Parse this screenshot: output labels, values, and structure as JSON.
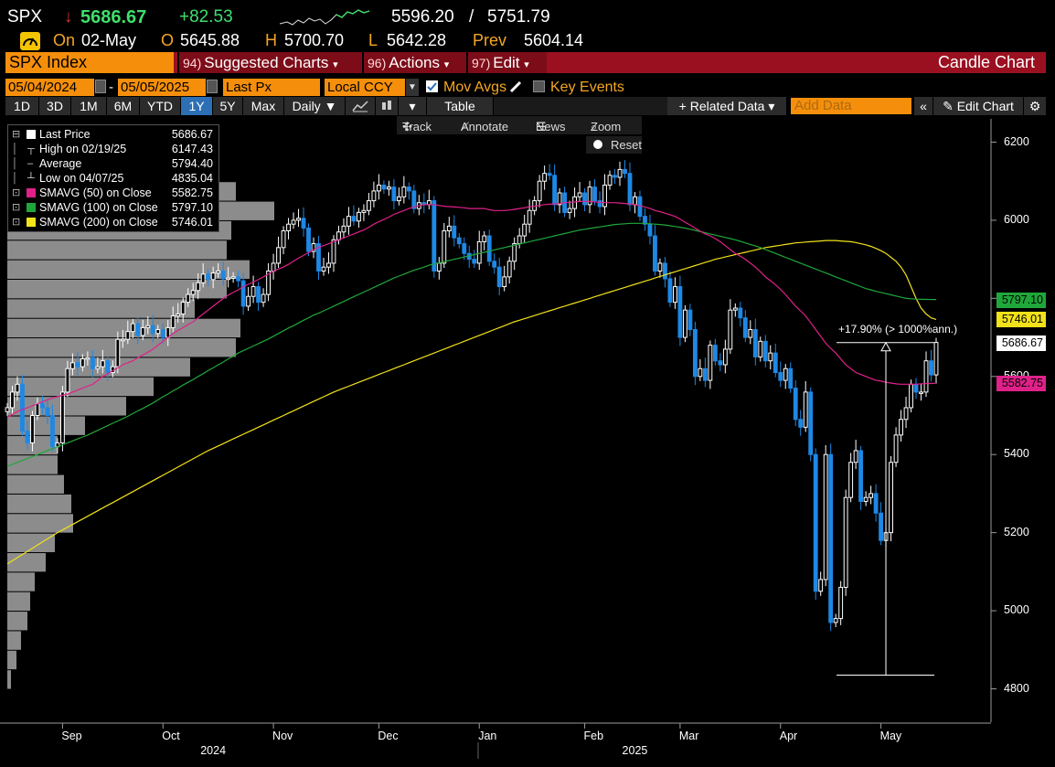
{
  "header": {
    "ticker": "SPX",
    "arrow": "↓",
    "last": "5686.67",
    "change": "+82.53",
    "range_low": "5596.20",
    "range_sep": "/",
    "range_high": "5751.79",
    "on_label": "On",
    "date": "02-May",
    "open_label": "O",
    "open": "5645.88",
    "high_label": "H",
    "high": "5700.70",
    "low_label": "L",
    "low": "5642.28",
    "prev_label": "Prev",
    "prev": "5604.14"
  },
  "menu": {
    "security": "SPX Index",
    "items": [
      {
        "num": "94)",
        "label": "Suggested Charts"
      },
      {
        "num": "96)",
        "label": "Actions"
      },
      {
        "num": "97)",
        "label": "Edit"
      }
    ],
    "title": "Candle Chart"
  },
  "controls": {
    "start_date": "05/04/2024",
    "end_date": "05/05/2025",
    "field": "Last Px",
    "currency": "Local CCY",
    "mov_avgs": "Mov Avgs",
    "key_events": "Key Events"
  },
  "toolbar": {
    "periods": [
      "1D",
      "3D",
      "1M",
      "6M",
      "YTD",
      "1Y",
      "5Y",
      "Max"
    ],
    "selected_period": "1Y",
    "frequency": "Daily",
    "table": "Table",
    "related_data": "Related Data",
    "add_data_placeholder": "Add Data",
    "edit_chart": "Edit Chart"
  },
  "float_tools": {
    "track": "Track",
    "annotate": "Annotate",
    "news": "News",
    "zoom": "Zoom",
    "reset": "Reset"
  },
  "legend": [
    {
      "label": "Last Price",
      "value": "5686.67",
      "color": "#ffffff",
      "marker": "square"
    },
    {
      "label": "High on 02/19/25",
      "value": "6147.43",
      "marker": "up"
    },
    {
      "label": "Average",
      "value": "5794.40",
      "marker": "dash"
    },
    {
      "label": "Low on 04/07/25",
      "value": "4835.04",
      "marker": "down"
    },
    {
      "label": "SMAVG (50)  on Close",
      "value": "5582.75",
      "color": "#e0218a",
      "marker": "square"
    },
    {
      "label": "SMAVG (100)  on Close",
      "value": "5797.10",
      "color": "#1fa83a",
      "marker": "square"
    },
    {
      "label": "SMAVG (200)  on Close",
      "value": "5746.01",
      "color": "#f2e21a",
      "marker": "square"
    }
  ],
  "annotation": "+17.90% (> 1000%ann.)",
  "chart_data": {
    "type": "candlestick",
    "ylim": [
      4750,
      6250
    ],
    "y_ticks": [
      4800,
      5000,
      5200,
      5400,
      5600,
      5800,
      6000,
      6200
    ],
    "x_month_labels": [
      "Sep",
      "Oct",
      "Nov",
      "Dec",
      "Jan",
      "Feb",
      "Mar",
      "Apr",
      "May"
    ],
    "x_year_labels": [
      "2024",
      "2025"
    ],
    "right_labels": [
      {
        "value": 5797.1,
        "text": "5797.10",
        "color": "#1fa83a"
      },
      {
        "value": 5746.01,
        "text": "5746.01",
        "color": "#f2e21a"
      },
      {
        "value": 5686.67,
        "text": "5686.67",
        "color": "#ffffff"
      },
      {
        "value": 5582.75,
        "text": "5582.75",
        "color": "#e0218a"
      }
    ],
    "close": [
      5520,
      5560,
      5580,
      5460,
      5430,
      5500,
      5530,
      5520,
      5500,
      5420,
      5430,
      5560,
      5620,
      5635,
      5625,
      5645,
      5648,
      5620,
      5625,
      5640,
      5610,
      5625,
      5695,
      5695,
      5715,
      5735,
      5705,
      5725,
      5730,
      5710,
      5720,
      5700,
      5725,
      5755,
      5760,
      5790,
      5810,
      5820,
      5840,
      5862,
      5848,
      5865,
      5870,
      5850,
      5852,
      5855,
      5845,
      5780,
      5805,
      5830,
      5790,
      5810,
      5870,
      5890,
      5930,
      5973,
      5990,
      6000,
      6005,
      5980,
      5920,
      5940,
      5870,
      5880,
      5890,
      5950,
      5970,
      5985,
      6010,
      5998,
      6020,
      6025,
      6050,
      6075,
      6090,
      6080,
      6085,
      6050,
      6060,
      6085,
      6075,
      6030,
      6045,
      6040,
      6050,
      5870,
      5890,
      5973,
      5985,
      5955,
      5940,
      5915,
      5900,
      5890,
      5945,
      5960,
      5895,
      5880,
      5830,
      5855,
      5895,
      5940,
      5960,
      5990,
      6025,
      6050,
      6100,
      6120,
      6115,
      6040,
      6070,
      6020,
      6030,
      6060,
      6070,
      6040,
      6085,
      6050,
      6035,
      6090,
      6115,
      6110,
      6130,
      6120,
      6040,
      6060,
      6010,
      5990,
      5960,
      5870,
      5890,
      5850,
      5790,
      5830,
      5700,
      5770,
      5720,
      5600,
      5620,
      5590,
      5680,
      5640,
      5630,
      5670,
      5770,
      5775,
      5750,
      5700,
      5720,
      5650,
      5690,
      5640,
      5660,
      5610,
      5590,
      5620,
      5570,
      5490,
      5470,
      5560,
      5400,
      5050,
      5080,
      5400,
      4970,
      4980,
      5060,
      5290,
      5380,
      5410,
      5280,
      5290,
      5300,
      5250,
      5180,
      5200,
      5380,
      5450,
      5490,
      5520,
      5580,
      5560,
      5560,
      5640,
      5604,
      5687
    ],
    "sma50": [
      5495,
      5503,
      5510,
      5515,
      5520,
      5525,
      5530,
      5535,
      5540,
      5545,
      5548,
      5552,
      5555,
      5560,
      5565,
      5570,
      5575,
      5580,
      5590,
      5600,
      5607,
      5615,
      5622,
      5630,
      5635,
      5640,
      5648,
      5655,
      5662,
      5670,
      5680,
      5690,
      5700,
      5710,
      5718,
      5725,
      5733,
      5740,
      5750,
      5760,
      5770,
      5780,
      5790,
      5800,
      5808,
      5815,
      5822,
      5830,
      5836,
      5842,
      5848,
      5855,
      5862,
      5870,
      5875,
      5880,
      5887,
      5895,
      5903,
      5910,
      5917,
      5925,
      5930,
      5935,
      5940,
      5945,
      5950,
      5955,
      5960,
      5965,
      5970,
      5975,
      5982,
      5990,
      5996,
      6002,
      6008,
      6015,
      6020,
      6025,
      6030,
      6034,
      6037,
      6040,
      6040,
      6040,
      6038,
      6036,
      6035,
      6034,
      6033,
      6032,
      6030,
      6030,
      6030,
      6030,
      6027,
      6025,
      6025,
      6025,
      6026,
      6028,
      6030,
      6032,
      6035,
      6036,
      6038,
      6040,
      6041,
      6042,
      6043,
      6045,
      6046,
      6047,
      6048,
      6048,
      6048,
      6047,
      6046,
      6045,
      6045,
      6045,
      6044,
      6043,
      6042,
      6040,
      6037,
      6034,
      6030,
      6025,
      6022,
      6018,
      6014,
      6010,
      6003,
      5995,
      5988,
      5980,
      5972,
      5965,
      5960,
      5953,
      5945,
      5935,
      5925,
      5915,
      5908,
      5900,
      5890,
      5880,
      5868,
      5855,
      5845,
      5835,
      5823,
      5810,
      5795,
      5780,
      5768,
      5755,
      5738,
      5720,
      5703,
      5685,
      5672,
      5660,
      5645,
      5630,
      5620,
      5610,
      5605,
      5600,
      5595,
      5590,
      5588,
      5585,
      5583,
      5581,
      5580,
      5580,
      5580,
      5580,
      5581,
      5582,
      5582,
      5582.75
    ],
    "sma100": [
      5370,
      5375,
      5380,
      5385,
      5390,
      5395,
      5400,
      5405,
      5410,
      5415,
      5420,
      5425,
      5430,
      5435,
      5440,
      5445,
      5450,
      5456,
      5462,
      5468,
      5474,
      5480,
      5486,
      5492,
      5498,
      5505,
      5512,
      5518,
      5525,
      5532,
      5540,
      5548,
      5555,
      5563,
      5570,
      5578,
      5585,
      5592,
      5600,
      5607,
      5615,
      5622,
      5630,
      5637,
      5645,
      5652,
      5660,
      5666,
      5672,
      5678,
      5684,
      5690,
      5696,
      5703,
      5710,
      5717,
      5724,
      5730,
      5737,
      5744,
      5750,
      5757,
      5762,
      5768,
      5774,
      5780,
      5786,
      5792,
      5798,
      5804,
      5810,
      5816,
      5822,
      5828,
      5834,
      5840,
      5846,
      5852,
      5857,
      5862,
      5867,
      5872,
      5876,
      5880,
      5885,
      5888,
      5891,
      5894,
      5897,
      5900,
      5903,
      5906,
      5909,
      5912,
      5915,
      5918,
      5921,
      5924,
      5927,
      5930,
      5933,
      5936,
      5939,
      5942,
      5945,
      5948,
      5951,
      5954,
      5957,
      5960,
      5963,
      5966,
      5969,
      5972,
      5975,
      5977,
      5979,
      5981,
      5983,
      5985,
      5987,
      5989,
      5990,
      5991,
      5992,
      5992,
      5992,
      5992,
      5991,
      5990,
      5989,
      5988,
      5986,
      5984,
      5982,
      5980,
      5977,
      5974,
      5971,
      5968,
      5965,
      5962,
      5959,
      5956,
      5953,
      5950,
      5946,
      5942,
      5938,
      5934,
      5930,
      5925,
      5920,
      5915,
      5910,
      5905,
      5900,
      5895,
      5890,
      5885,
      5880,
      5875,
      5870,
      5865,
      5860,
      5855,
      5850,
      5845,
      5840,
      5835,
      5830,
      5825,
      5822,
      5818,
      5815,
      5812,
      5809,
      5806,
      5803,
      5800,
      5799,
      5798,
      5797.5,
      5797.3,
      5797.2,
      5797.1
    ],
    "sma200": [
      5120,
      5128,
      5136,
      5144,
      5152,
      5160,
      5168,
      5176,
      5184,
      5192,
      5200,
      5207,
      5214,
      5221,
      5228,
      5235,
      5242,
      5249,
      5256,
      5263,
      5270,
      5277,
      5284,
      5291,
      5298,
      5305,
      5312,
      5319,
      5326,
      5333,
      5340,
      5347,
      5354,
      5361,
      5368,
      5375,
      5382,
      5389,
      5396,
      5403,
      5410,
      5416,
      5422,
      5428,
      5434,
      5440,
      5446,
      5452,
      5458,
      5464,
      5470,
      5476,
      5482,
      5488,
      5494,
      5500,
      5506,
      5512,
      5518,
      5524,
      5530,
      5536,
      5542,
      5548,
      5554,
      5560,
      5565,
      5570,
      5575,
      5580,
      5585,
      5590,
      5595,
      5600,
      5605,
      5610,
      5615,
      5620,
      5625,
      5630,
      5635,
      5640,
      5645,
      5650,
      5655,
      5660,
      5665,
      5670,
      5675,
      5680,
      5685,
      5690,
      5695,
      5700,
      5705,
      5710,
      5715,
      5720,
      5725,
      5730,
      5735,
      5740,
      5744,
      5748,
      5752,
      5756,
      5760,
      5764,
      5768,
      5772,
      5776,
      5780,
      5784,
      5788,
      5792,
      5796,
      5800,
      5804,
      5808,
      5812,
      5816,
      5820,
      5824,
      5828,
      5832,
      5836,
      5840,
      5844,
      5848,
      5852,
      5856,
      5860,
      5864,
      5868,
      5872,
      5876,
      5880,
      5884,
      5888,
      5892,
      5896,
      5900,
      5903,
      5906,
      5909,
      5912,
      5915,
      5918,
      5921,
      5924,
      5927,
      5930,
      5932,
      5934,
      5936,
      5938,
      5940,
      5942,
      5943,
      5944,
      5945,
      5946,
      5947,
      5948,
      5948,
      5948,
      5947,
      5946,
      5945,
      5943,
      5940,
      5937,
      5933,
      5928,
      5922,
      5915,
      5905,
      5895,
      5880,
      5860,
      5830,
      5800,
      5775,
      5760,
      5750,
      5746.01
    ],
    "volume_profile": [
      {
        "price": 6175,
        "length": 25
      },
      {
        "price": 6125,
        "length": 60
      },
      {
        "price": 6075,
        "length": 250
      },
      {
        "price": 6025,
        "length": 292
      },
      {
        "price": 5975,
        "length": 245
      },
      {
        "price": 5925,
        "length": 240
      },
      {
        "price": 5875,
        "length": 265
      },
      {
        "price": 5825,
        "length": 240
      },
      {
        "price": 5775,
        "length": 205
      },
      {
        "price": 5725,
        "length": 255
      },
      {
        "price": 5675,
        "length": 250
      },
      {
        "price": 5625,
        "length": 200
      },
      {
        "price": 5575,
        "length": 160
      },
      {
        "price": 5525,
        "length": 130
      },
      {
        "price": 5475,
        "length": 85
      },
      {
        "price": 5425,
        "length": 55
      },
      {
        "price": 5375,
        "length": 55
      },
      {
        "price": 5325,
        "length": 62
      },
      {
        "price": 5275,
        "length": 70
      },
      {
        "price": 5225,
        "length": 72
      },
      {
        "price": 5175,
        "length": 52
      },
      {
        "price": 5125,
        "length": 42
      },
      {
        "price": 5075,
        "length": 30
      },
      {
        "price": 5025,
        "length": 25
      },
      {
        "price": 4975,
        "length": 22
      },
      {
        "price": 4925,
        "length": 15
      },
      {
        "price": 4875,
        "length": 10
      },
      {
        "price": 4825,
        "length": 4
      }
    ]
  },
  "colors": {
    "accent_orange": "#f58f0b",
    "menu_red": "#9b1020",
    "candle_down": "#1e88e5",
    "candle_up": "#ffffff",
    "change_green": "#3fe06b"
  }
}
